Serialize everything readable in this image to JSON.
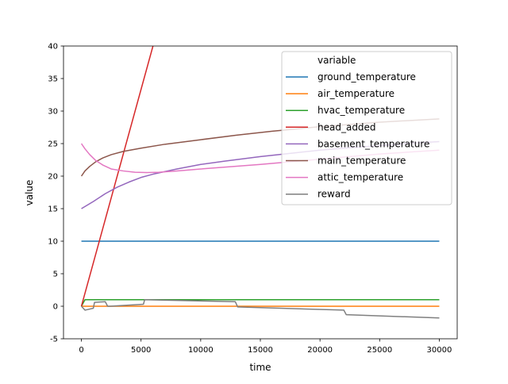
{
  "chart_data": {
    "type": "line",
    "xlabel": "time",
    "ylabel": "value",
    "xlim": [
      -1500,
      31500
    ],
    "ylim": [
      -5,
      40
    ],
    "xticks": [
      0,
      5000,
      10000,
      15000,
      20000,
      25000,
      30000
    ],
    "yticks": [
      -5,
      0,
      5,
      10,
      15,
      20,
      25,
      30,
      35,
      40
    ],
    "legend": {
      "title": "variable",
      "placement": "top-right"
    },
    "series": [
      {
        "name": "ground_temperature",
        "color": "#1f77b4",
        "x": [
          0,
          30000
        ],
        "y": [
          10,
          10
        ]
      },
      {
        "name": "air_temperature",
        "color": "#ff7f0e",
        "x": [
          0,
          30000
        ],
        "y": [
          0,
          0
        ]
      },
      {
        "name": "hvac_temperature",
        "color": "#2ca02c",
        "x": [
          0,
          300,
          30000
        ],
        "y": [
          0,
          1,
          1
        ]
      },
      {
        "name": "head_added",
        "color": "#d62728",
        "x": [
          0,
          6000
        ],
        "y": [
          0,
          40
        ]
      },
      {
        "name": "basement_temperature",
        "color": "#9467bd",
        "x": [
          0,
          1000,
          2000,
          3000,
          4000,
          5000,
          6000,
          8000,
          10000,
          12000,
          15000,
          18000,
          20000,
          22000,
          25000,
          28000,
          30000
        ],
        "y": [
          15,
          16.1,
          17.3,
          18.3,
          19.1,
          19.8,
          20.3,
          21.1,
          21.8,
          22.3,
          23.0,
          23.6,
          24.0,
          24.3,
          24.7,
          25.1,
          25.3
        ]
      },
      {
        "name": "main_temperature",
        "color": "#8c564b",
        "x": [
          0,
          300,
          700,
          1200,
          1800,
          2500,
          3500,
          5000,
          7000,
          10000,
          13000,
          16000,
          20000,
          25000,
          30000
        ],
        "y": [
          20,
          20.8,
          21.5,
          22.2,
          22.8,
          23.3,
          23.8,
          24.3,
          24.9,
          25.6,
          26.3,
          26.9,
          27.6,
          28.3,
          28.8
        ]
      },
      {
        "name": "attic_temperature",
        "color": "#e377c2",
        "x": [
          0,
          300,
          700,
          1200,
          1800,
          2500,
          3500,
          4500,
          5500,
          6500,
          8000,
          10000,
          15000,
          20000,
          25000,
          30000
        ],
        "y": [
          25,
          24.2,
          23.3,
          22.4,
          21.7,
          21.1,
          20.8,
          20.6,
          20.55,
          20.6,
          20.8,
          21.1,
          21.8,
          22.6,
          23.4,
          24.0
        ]
      },
      {
        "name": "reward",
        "color": "#7f7f7f",
        "x": [
          0,
          300,
          1000,
          1100,
          2000,
          2200,
          2400,
          5200,
          5300,
          12900,
          13100,
          22000,
          22200,
          30000
        ],
        "y": [
          0,
          -0.6,
          -0.3,
          0.6,
          0.7,
          0.0,
          0.0,
          0.3,
          1.0,
          0.7,
          -0.1,
          -0.6,
          -1.3,
          -1.8
        ]
      }
    ]
  }
}
